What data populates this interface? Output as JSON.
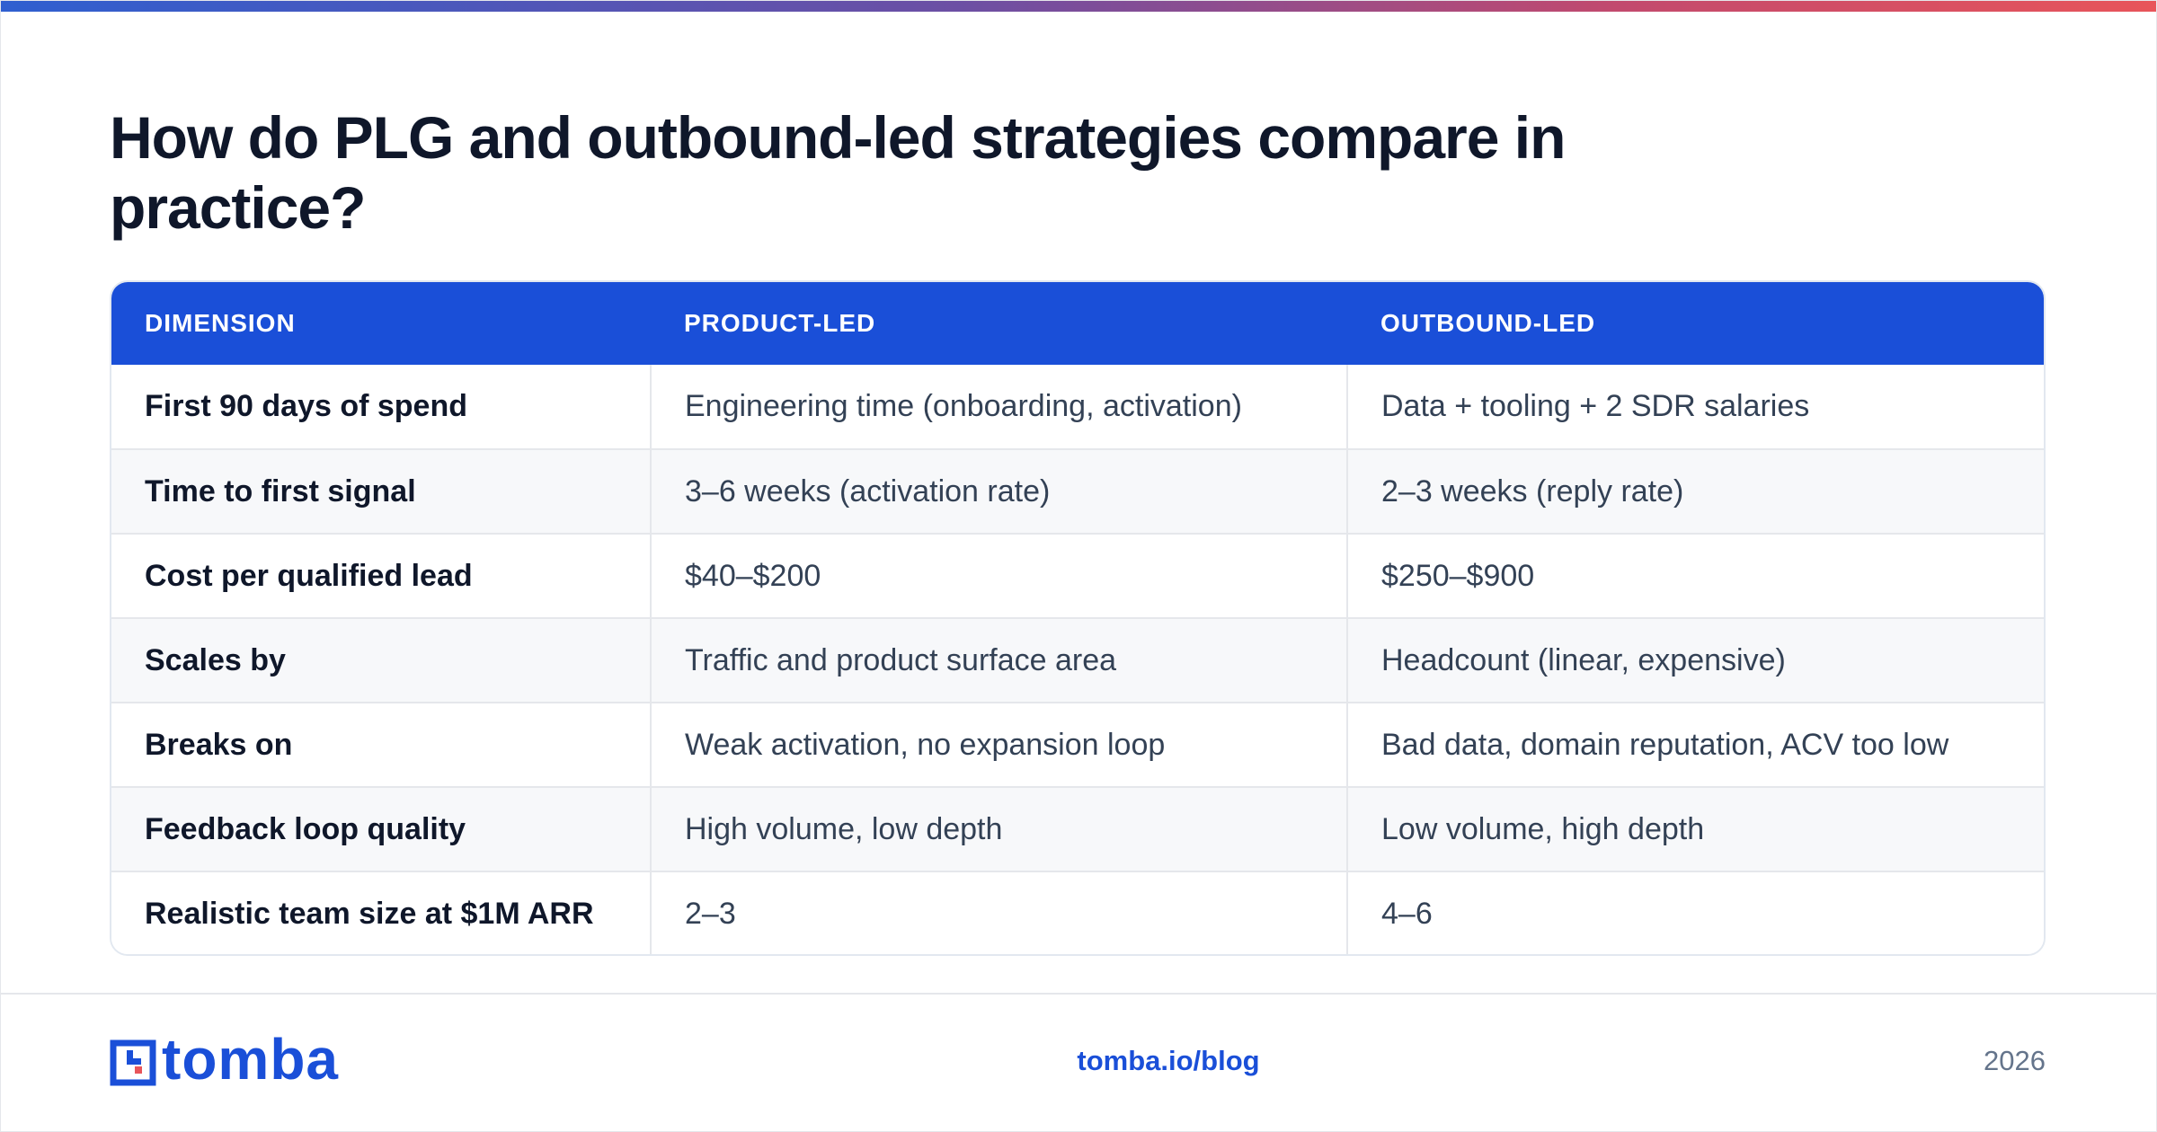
{
  "title": "How do PLG and outbound-led strategies compare in practice?",
  "table": {
    "headers": [
      "DIMENSION",
      "PRODUCT-LED",
      "OUTBOUND-LED"
    ],
    "rows": [
      [
        "First 90 days of spend",
        "Engineering time (onboarding, activation)",
        "Data + tooling + 2 SDR salaries"
      ],
      [
        "Time to first signal",
        "3–6 weeks (activation rate)",
        "2–3 weeks (reply rate)"
      ],
      [
        "Cost per qualified lead",
        "$40–$200",
        "$250–$900"
      ],
      [
        "Scales by",
        "Traffic and product surface area",
        "Headcount (linear, expensive)"
      ],
      [
        "Breaks on",
        "Weak activation, no expansion loop",
        "Bad data, domain reputation, ACV too low"
      ],
      [
        "Feedback loop quality",
        "High volume, low depth",
        "Low volume, high depth"
      ],
      [
        "Realistic team size at $1M ARR",
        "2–3",
        "4–6"
      ]
    ]
  },
  "footer": {
    "logo_text": "tomba",
    "url": "tomba.io/blog",
    "year": "2026"
  },
  "colors": {
    "accent": "#1a4fd8",
    "heading": "#0f172a",
    "body_text": "#334155",
    "muted": "#64748b"
  }
}
